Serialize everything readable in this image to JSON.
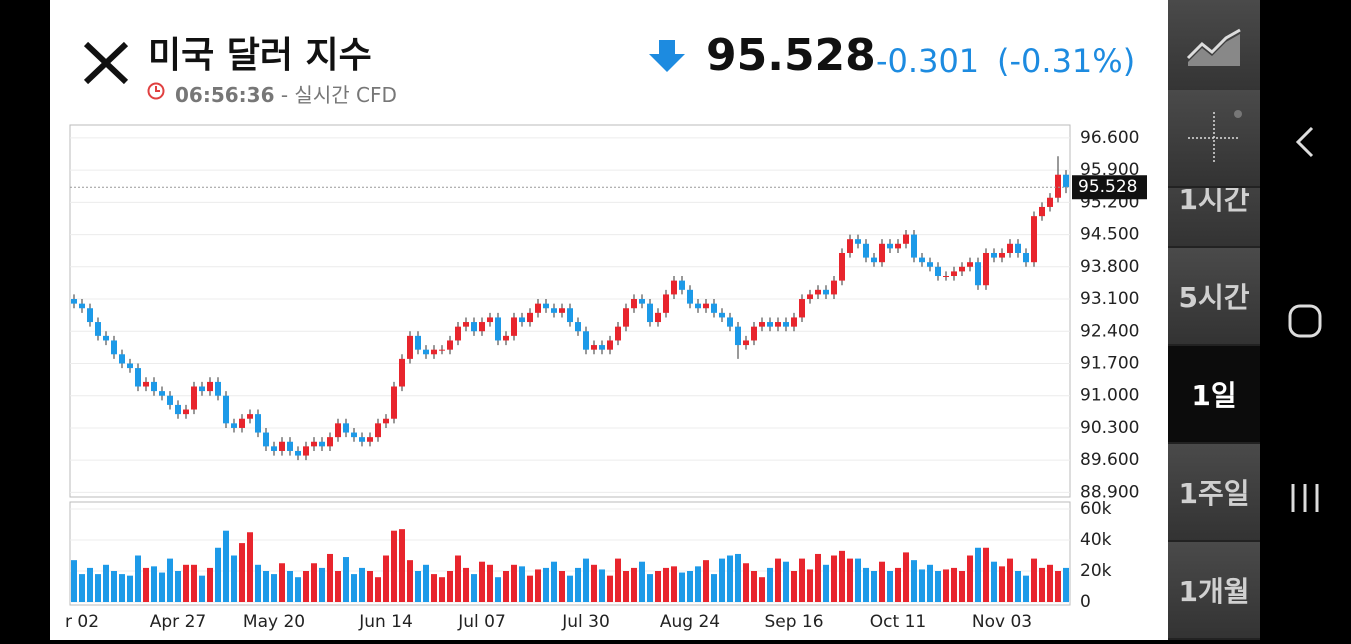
{
  "header": {
    "title": "미국 달러 지수",
    "time": "06:56:36",
    "source": "- 실시간 CFD",
    "price": "95.528",
    "change": "-0.301",
    "change_percent": "(-0.31%)"
  },
  "sidebar": {
    "intervals": [
      "1시간",
      "5시간",
      "1일",
      "1주일",
      "1개월"
    ],
    "selected": 2
  },
  "chart_data": {
    "type": "candlestick",
    "up_color": "#e8252d",
    "down_color": "#1d9ae8",
    "last_price": 95.528,
    "x": [
      null,
      "r 02",
      null,
      null,
      null,
      null,
      null,
      null,
      null,
      null,
      null,
      null,
      null,
      "Apr 27",
      null,
      null,
      null,
      null,
      null,
      null,
      null,
      null,
      null,
      null,
      null,
      "May 20",
      null,
      null,
      null,
      null,
      null,
      null,
      null,
      null,
      null,
      null,
      null,
      null,
      null,
      "Jun 14",
      null,
      null,
      null,
      null,
      null,
      null,
      null,
      null,
      null,
      null,
      null,
      "Jul 07",
      null,
      null,
      null,
      null,
      null,
      null,
      null,
      null,
      null,
      null,
      null,
      null,
      "Jul 30",
      null,
      null,
      null,
      null,
      null,
      null,
      null,
      null,
      null,
      null,
      null,
      null,
      "Aug 24",
      null,
      null,
      null,
      null,
      null,
      null,
      null,
      null,
      null,
      null,
      null,
      null,
      "Sep 16",
      null,
      null,
      null,
      null,
      null,
      null,
      null,
      null,
      null,
      null,
      null,
      null,
      "Oct 11",
      null,
      null,
      null,
      null,
      null,
      null,
      null,
      null,
      null,
      null,
      null,
      null,
      "Nov 03",
      null,
      null,
      null,
      null,
      null,
      null,
      null,
      null
    ],
    "open": [
      93.1,
      93.0,
      92.9,
      92.6,
      92.3,
      92.2,
      91.9,
      91.7,
      91.6,
      91.2,
      91.3,
      91.1,
      91.0,
      90.8,
      90.6,
      90.7,
      91.2,
      91.1,
      91.3,
      91.0,
      90.4,
      90.3,
      90.5,
      90.6,
      90.2,
      89.9,
      89.8,
      90.0,
      89.8,
      89.7,
      89.9,
      90.0,
      89.9,
      90.1,
      90.4,
      90.2,
      90.1,
      90.0,
      90.1,
      90.4,
      90.5,
      91.2,
      91.8,
      92.3,
      92.0,
      91.9,
      92.0,
      92.0,
      92.2,
      92.5,
      92.6,
      92.4,
      92.6,
      92.7,
      92.2,
      92.3,
      92.7,
      92.6,
      92.8,
      93.0,
      92.9,
      92.8,
      92.9,
      92.6,
      92.4,
      92.0,
      92.1,
      92.0,
      92.2,
      92.5,
      92.9,
      93.1,
      93.0,
      92.6,
      92.8,
      93.2,
      93.5,
      93.3,
      93.0,
      92.9,
      93.0,
      92.8,
      92.7,
      92.5,
      92.1,
      92.2,
      92.5,
      92.6,
      92.5,
      92.6,
      92.5,
      92.7,
      93.1,
      93.2,
      93.3,
      93.2,
      93.5,
      94.1,
      94.4,
      94.3,
      94.0,
      93.9,
      94.3,
      94.2,
      94.3,
      94.5,
      94.0,
      93.9,
      93.8,
      93.6,
      93.6,
      93.7,
      93.8,
      93.9,
      93.4,
      94.1,
      94.0,
      94.1,
      94.3,
      94.1,
      93.9,
      94.9,
      95.1,
      95.3,
      95.8
    ],
    "high": [
      93.2,
      93.1,
      93.0,
      92.7,
      92.4,
      92.3,
      92.0,
      91.8,
      91.7,
      91.4,
      91.4,
      91.2,
      91.1,
      90.9,
      90.8,
      91.3,
      91.3,
      91.4,
      91.4,
      91.1,
      90.5,
      90.6,
      90.7,
      90.7,
      90.3,
      90.0,
      90.1,
      90.1,
      89.9,
      90.0,
      90.1,
      90.1,
      90.2,
      90.5,
      90.5,
      90.3,
      90.2,
      90.2,
      90.5,
      90.6,
      91.3,
      91.9,
      92.4,
      92.4,
      92.1,
      92.1,
      92.1,
      92.3,
      92.6,
      92.7,
      92.7,
      92.7,
      92.8,
      92.8,
      92.4,
      92.8,
      92.8,
      92.9,
      93.1,
      93.1,
      93.0,
      93.0,
      93.0,
      92.7,
      92.5,
      92.2,
      92.2,
      92.3,
      92.6,
      93.0,
      93.2,
      93.2,
      93.1,
      92.9,
      93.3,
      93.6,
      93.6,
      93.4,
      93.1,
      93.1,
      93.1,
      92.9,
      92.8,
      92.6,
      92.3,
      92.6,
      92.7,
      92.7,
      92.7,
      92.7,
      92.8,
      93.2,
      93.3,
      93.4,
      93.4,
      93.6,
      94.2,
      94.5,
      94.5,
      94.4,
      94.1,
      94.4,
      94.4,
      94.4,
      94.6,
      94.6,
      94.1,
      94.0,
      93.9,
      93.7,
      93.8,
      93.9,
      94.0,
      94.0,
      94.2,
      94.2,
      94.2,
      94.4,
      94.4,
      94.2,
      95.0,
      95.2,
      95.4,
      96.2,
      95.9
    ],
    "low": [
      92.9,
      92.8,
      92.5,
      92.2,
      92.1,
      91.8,
      91.6,
      91.5,
      91.1,
      91.1,
      91.0,
      90.9,
      90.7,
      90.5,
      90.5,
      90.6,
      91.0,
      91.0,
      90.9,
      90.3,
      90.2,
      90.2,
      90.4,
      90.1,
      89.8,
      89.7,
      89.7,
      89.7,
      89.6,
      89.6,
      89.8,
      89.8,
      89.8,
      90.0,
      90.1,
      90.0,
      89.9,
      89.9,
      90.0,
      90.3,
      90.4,
      91.1,
      91.7,
      91.9,
      91.8,
      91.8,
      91.9,
      91.9,
      92.1,
      92.4,
      92.3,
      92.3,
      92.5,
      92.1,
      92.1,
      92.2,
      92.5,
      92.5,
      92.7,
      92.8,
      92.7,
      92.7,
      92.5,
      92.3,
      91.9,
      91.9,
      91.9,
      91.9,
      92.1,
      92.4,
      92.8,
      92.9,
      92.5,
      92.5,
      92.7,
      93.1,
      93.2,
      92.9,
      92.8,
      92.8,
      92.7,
      92.6,
      92.4,
      91.8,
      92.0,
      92.1,
      92.4,
      92.4,
      92.4,
      92.4,
      92.4,
      92.6,
      93.0,
      93.1,
      93.1,
      93.1,
      93.4,
      94.0,
      94.2,
      93.9,
      93.8,
      93.8,
      94.1,
      94.1,
      94.2,
      93.9,
      93.8,
      93.7,
      93.5,
      93.5,
      93.5,
      93.6,
      93.7,
      93.3,
      93.3,
      93.9,
      93.9,
      94.0,
      94.0,
      93.8,
      93.8,
      94.8,
      95.0,
      95.2,
      95.4
    ],
    "close": [
      93.0,
      92.9,
      92.6,
      92.3,
      92.2,
      91.9,
      91.7,
      91.6,
      91.2,
      91.3,
      91.1,
      91.0,
      90.8,
      90.6,
      90.7,
      91.2,
      91.1,
      91.3,
      91.0,
      90.4,
      90.3,
      90.5,
      90.6,
      90.2,
      89.9,
      89.8,
      90.0,
      89.8,
      89.7,
      89.9,
      90.0,
      89.9,
      90.1,
      90.4,
      90.2,
      90.1,
      90.0,
      90.1,
      90.4,
      90.5,
      91.2,
      91.8,
      92.3,
      92.0,
      91.9,
      92.0,
      92.0,
      92.2,
      92.5,
      92.6,
      92.4,
      92.6,
      92.7,
      92.2,
      92.3,
      92.7,
      92.6,
      92.8,
      93.0,
      92.9,
      92.8,
      92.9,
      92.6,
      92.4,
      92.0,
      92.1,
      92.0,
      92.2,
      92.5,
      92.9,
      93.1,
      93.0,
      92.6,
      92.8,
      93.2,
      93.5,
      93.3,
      93.0,
      92.9,
      93.0,
      92.8,
      92.7,
      92.5,
      92.1,
      92.2,
      92.5,
      92.6,
      92.5,
      92.6,
      92.5,
      92.7,
      93.1,
      93.2,
      93.3,
      93.2,
      93.5,
      94.1,
      94.4,
      94.3,
      94.0,
      93.9,
      94.3,
      94.2,
      94.3,
      94.5,
      94.0,
      93.9,
      93.8,
      93.6,
      93.6,
      93.7,
      93.8,
      93.9,
      93.4,
      94.1,
      94.0,
      94.1,
      94.3,
      94.1,
      93.9,
      94.9,
      95.1,
      95.3,
      95.8,
      95.528
    ],
    "ylim": [
      88.8,
      96.88
    ],
    "yticks": [
      {
        "value": 96.6,
        "label": "96.600"
      },
      {
        "value": 95.9,
        "label": "95.900"
      },
      {
        "value": 95.2,
        "label": "95.200"
      },
      {
        "value": 94.5,
        "label": "94.500"
      },
      {
        "value": 93.8,
        "label": "93.800"
      },
      {
        "value": 93.1,
        "label": "93.100"
      },
      {
        "value": 92.4,
        "label": "92.400"
      },
      {
        "value": 91.7,
        "label": "91.700"
      },
      {
        "value": 91.0,
        "label": "91.000"
      },
      {
        "value": 90.3,
        "label": "90.300"
      },
      {
        "value": 89.6,
        "label": "89.600"
      },
      {
        "value": 88.9,
        "label": "88.900"
      }
    ],
    "grid": true,
    "volume": {
      "values": [
        27000,
        18000,
        22000,
        18000,
        24000,
        20000,
        18000,
        17000,
        30000,
        22000,
        23000,
        19000,
        28000,
        20000,
        24000,
        24000,
        17000,
        22000,
        35000,
        46000,
        30000,
        38000,
        45000,
        24000,
        20000,
        18000,
        25000,
        20000,
        16000,
        20000,
        25000,
        22000,
        31000,
        20000,
        29000,
        18000,
        22000,
        20000,
        16000,
        30000,
        46000,
        47000,
        27000,
        20000,
        24000,
        18000,
        16000,
        20000,
        30000,
        22000,
        18000,
        26000,
        24000,
        16000,
        20000,
        24000,
        23000,
        17000,
        21000,
        22000,
        26000,
        20000,
        17000,
        22000,
        28000,
        24000,
        21000,
        17000,
        28000,
        20000,
        22000,
        26000,
        18000,
        20000,
        22000,
        23000,
        19000,
        20000,
        23000,
        27000,
        18000,
        28000,
        30000,
        31000,
        25000,
        20000,
        16000,
        22000,
        28000,
        26000,
        20000,
        28000,
        21000,
        31000,
        24000,
        30000,
        33000,
        28000,
        28000,
        22000,
        20000,
        26000,
        20000,
        22000,
        32000,
        27000,
        21000,
        24000,
        20000,
        21000,
        22000,
        20000,
        30000,
        35000,
        35000,
        26000,
        23000,
        28000,
        20000,
        17000,
        28000,
        22000,
        24000,
        20000,
        22000
      ],
      "ylim": [
        0,
        60000
      ],
      "yticks": [
        {
          "value": 60000,
          "label": "60k"
        },
        {
          "value": 40000,
          "label": "40k"
        },
        {
          "value": 20000,
          "label": "20k"
        },
        0
      ]
    }
  }
}
